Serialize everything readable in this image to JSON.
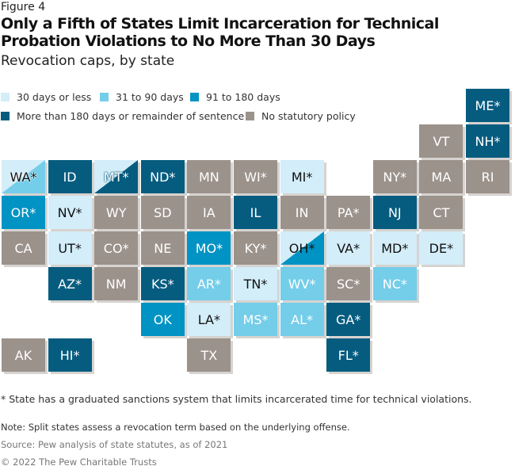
{
  "figure_label": "Figure 4",
  "title": "Only a Fifth of States Limit Incarceration for Technical Probation Violations to No More Than 30 Days",
  "subtitle": "Revocation caps, by state",
  "colors": {
    "le30": "#d3edf9",
    "d31_90": "#74cde9",
    "d91_180": "#0093c3",
    "gt180": "#055c7f",
    "none": "#9b928b"
  },
  "legend": [
    {
      "key": "le30",
      "label": "30 days or less"
    },
    {
      "key": "d31_90",
      "label": "31 to 90 days"
    },
    {
      "key": "d91_180",
      "label": "91 to 180 days"
    },
    {
      "key": "gt180",
      "label": "More than 180 days or remainder of sentence"
    },
    {
      "key": "none",
      "label": "No statutory policy"
    }
  ],
  "states": [
    {
      "label": "ME*",
      "cat": "gt180"
    },
    {
      "label": "VT",
      "cat": "none"
    },
    {
      "label": "NH*",
      "cat": "gt180"
    },
    {
      "label": "WA*",
      "cat": "le30",
      "split": "d31_90"
    },
    {
      "label": "ID",
      "cat": "gt180"
    },
    {
      "label": "MT*",
      "cat": "le30",
      "split": "gt180"
    },
    {
      "label": "ND*",
      "cat": "gt180"
    },
    {
      "label": "MN",
      "cat": "none"
    },
    {
      "label": "WI*",
      "cat": "none"
    },
    {
      "label": "MI*",
      "cat": "le30"
    },
    {
      "label": "NY*",
      "cat": "none"
    },
    {
      "label": "MA",
      "cat": "none"
    },
    {
      "label": "RI",
      "cat": "none"
    },
    {
      "label": "OR*",
      "cat": "d91_180"
    },
    {
      "label": "NV*",
      "cat": "le30"
    },
    {
      "label": "WY",
      "cat": "none"
    },
    {
      "label": "SD",
      "cat": "none"
    },
    {
      "label": "IA",
      "cat": "none"
    },
    {
      "label": "IL",
      "cat": "gt180"
    },
    {
      "label": "IN",
      "cat": "none"
    },
    {
      "label": "PA*",
      "cat": "none"
    },
    {
      "label": "NJ",
      "cat": "gt180"
    },
    {
      "label": "CT",
      "cat": "none"
    },
    {
      "label": "CA",
      "cat": "none"
    },
    {
      "label": "UT*",
      "cat": "le30"
    },
    {
      "label": "CO*",
      "cat": "none"
    },
    {
      "label": "NE",
      "cat": "none"
    },
    {
      "label": "MO*",
      "cat": "d91_180"
    },
    {
      "label": "KY*",
      "cat": "none"
    },
    {
      "label": "OH*",
      "cat": "le30",
      "split": "d91_180"
    },
    {
      "label": "VA*",
      "cat": "le30"
    },
    {
      "label": "MD*",
      "cat": "le30"
    },
    {
      "label": "DE*",
      "cat": "le30"
    },
    {
      "label": "AZ*",
      "cat": "gt180"
    },
    {
      "label": "NM",
      "cat": "none"
    },
    {
      "label": "KS*",
      "cat": "gt180"
    },
    {
      "label": "AR*",
      "cat": "d31_90"
    },
    {
      "label": "TN*",
      "cat": "le30"
    },
    {
      "label": "WV*",
      "cat": "d31_90"
    },
    {
      "label": "SC*",
      "cat": "none"
    },
    {
      "label": "NC*",
      "cat": "d31_90"
    },
    {
      "label": "OK",
      "cat": "d91_180"
    },
    {
      "label": "LA*",
      "cat": "le30"
    },
    {
      "label": "MS*",
      "cat": "d31_90"
    },
    {
      "label": "AL*",
      "cat": "d31_90"
    },
    {
      "label": "GA*",
      "cat": "gt180"
    },
    {
      "label": "AK",
      "cat": "none"
    },
    {
      "label": "HI*",
      "cat": "gt180"
    },
    {
      "label": "TX",
      "cat": "none"
    },
    {
      "label": "FL*",
      "cat": "gt180"
    }
  ],
  "footnote": "* State has a graduated sanctions system that limits incarcerated time for technical violations.",
  "note": "Note: Split states assess a revocation term based on the underlying offense.",
  "source": "Source: Pew analysis of state statutes, as of 2021",
  "copyright": "© 2022 The Pew Charitable Trusts"
}
